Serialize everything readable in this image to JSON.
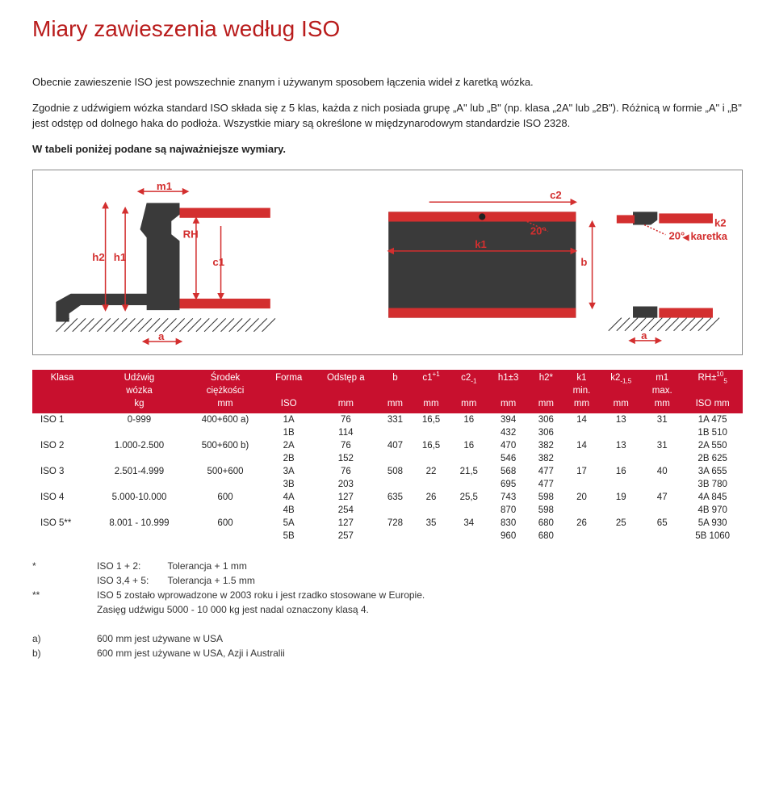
{
  "title": "Miary zawieszenia według ISO",
  "intro": [
    "Obecnie zawieszenie ISO jest powszechnie znanym i używanym sposobem łączenia wideł z karetką wózka.",
    "Zgodnie z udźwigiem wózka standard ISO składa się z 5 klas, każda z nich posiada grupę „A\" lub „B\" (np. klasa „2A\" lub „2B\"). Różnicą w formie „A\" i „B\" jest odstęp od dolnego haka do podłoża. Wszystkie miary są określone w międzynarodowym standardzie ISO 2328."
  ],
  "intro_bold": "W tabeli poniżej podane są najważniejsze wymiary.",
  "diagram_labels": {
    "m1": "m1",
    "h2": "h2",
    "h1": "h1",
    "RH": "RH",
    "c1": "c1",
    "a": "a",
    "c2": "c2",
    "k1": "k1",
    "k2": "k2",
    "b": "b",
    "ang20": "20°",
    "karetka": "karetka"
  },
  "colors": {
    "accent": "#c8102e",
    "diag_red": "#d32f2f",
    "diag_dark": "#3a3a3a"
  },
  "table": {
    "headers": [
      [
        "Klasa",
        "Udźwig",
        "Środek",
        "Forma",
        "Odstęp a",
        "b",
        "c1+1",
        "c2-1",
        "h1±3",
        "h2*",
        "k1",
        "k2-1,5",
        "m1",
        "RH±10 5"
      ],
      [
        "",
        "wózka",
        "ciężkości",
        "",
        "",
        "",
        "",
        "",
        "",
        "",
        "min.",
        "",
        "max.",
        ""
      ],
      [
        "",
        "kg",
        "mm",
        "ISO",
        "mm",
        "mm",
        "mm",
        "mm",
        "mm",
        "mm",
        "mm",
        "mm",
        "mm",
        "ISO mm"
      ]
    ],
    "rows": [
      [
        "ISO 1",
        "0-999",
        "400+600 a)",
        "1A",
        "76",
        "331",
        "16,5",
        "16",
        "394",
        "306",
        "14",
        "13",
        "31",
        "1A 475"
      ],
      [
        "",
        "",
        "",
        "1B",
        "114",
        "",
        "",
        "",
        "432",
        "306",
        "",
        "",
        "",
        "1B 510"
      ],
      [
        "ISO 2",
        "1.000-2.500",
        "500+600 b)",
        "2A",
        "76",
        "407",
        "16,5",
        "16",
        "470",
        "382",
        "14",
        "13",
        "31",
        "2A 550"
      ],
      [
        "",
        "",
        "",
        "2B",
        "152",
        "",
        "",
        "",
        "546",
        "382",
        "",
        "",
        "",
        "2B 625"
      ],
      [
        "ISO 3",
        "2.501-4.999",
        "500+600",
        "3A",
        "76",
        "508",
        "22",
        "21,5",
        "568",
        "477",
        "17",
        "16",
        "40",
        "3A 655"
      ],
      [
        "",
        "",
        "",
        "3B",
        "203",
        "",
        "",
        "",
        "695",
        "477",
        "",
        "",
        "",
        "3B 780"
      ],
      [
        "ISO 4",
        "5.000-10.000",
        "600",
        "4A",
        "127",
        "635",
        "26",
        "25,5",
        "743",
        "598",
        "20",
        "19",
        "47",
        "4A 845"
      ],
      [
        "",
        "",
        "",
        "4B",
        "254",
        "",
        "",
        "",
        "870",
        "598",
        "",
        "",
        "",
        "4B 970"
      ],
      [
        "ISO 5**",
        "8.001 - 10.999",
        "600",
        "5A",
        "127",
        "728",
        "35",
        "34",
        "830",
        "680",
        "26",
        "25",
        "65",
        "5A 930"
      ],
      [
        "",
        "",
        "",
        "5B",
        "257",
        "",
        "",
        "",
        "960",
        "680",
        "",
        "",
        "",
        "5B 1060"
      ]
    ]
  },
  "footnotes": {
    "star": [
      {
        "k": "*",
        "l1": "ISO 1 + 2:",
        "v1": "Tolerancja + 1 mm",
        "l2": "ISO 3,4 + 5:",
        "v2": "Tolerancja + 1.5 mm"
      },
      {
        "k": "**",
        "text": "ISO 5 zostało wprowadzone w 2003 roku i jest rzadko stosowane w Europie.",
        "text2": "Zasięg udźwigu 5000 - 10 000 kg jest nadal oznaczony klasą 4."
      }
    ],
    "letters": [
      {
        "k": "a)",
        "text": "600 mm jest używane w USA"
      },
      {
        "k": "b)",
        "text": "600 mm jest używane w USA, Azji i Australii"
      }
    ]
  }
}
